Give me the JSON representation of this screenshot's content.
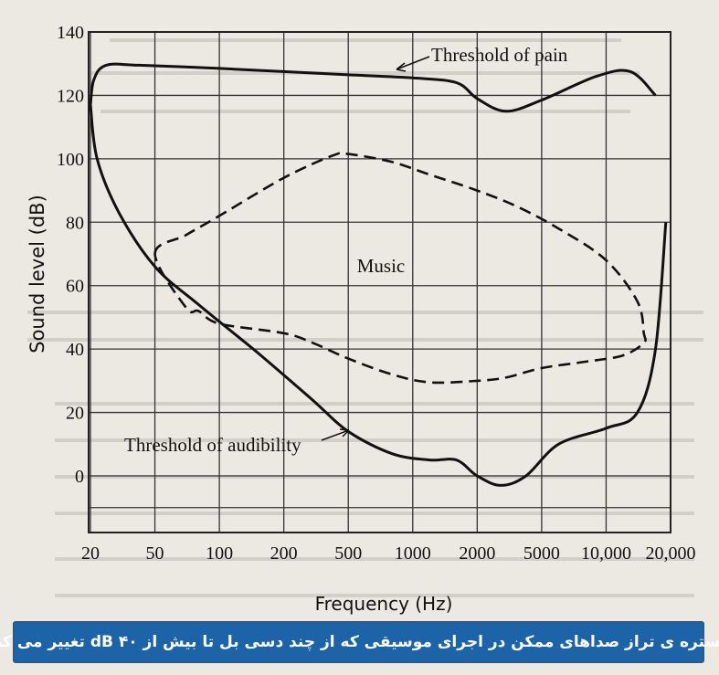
{
  "chart_data": {
    "type": "line",
    "xlabel": "Frequency (Hz)",
    "ylabel": "Sound level (dB)",
    "x_scale": "log",
    "xlim": [
      20,
      20000
    ],
    "ylim": [
      -10,
      140
    ],
    "x_ticks": [
      20,
      50,
      100,
      200,
      500,
      1000,
      2000,
      5000,
      10000,
      20000
    ],
    "x_tick_labels": [
      "20",
      "50",
      "100",
      "200",
      "500",
      "1000",
      "2000",
      "5000",
      "10,000",
      "20,000"
    ],
    "y_ticks": [
      0,
      20,
      40,
      60,
      80,
      100,
      120,
      140
    ],
    "y_tick_labels": [
      "0",
      "20",
      "40",
      "60",
      "80",
      "100",
      "120",
      "140"
    ],
    "grid": true,
    "series": [
      {
        "name": "Threshold of pain",
        "style": "solid",
        "x": [
          20,
          21,
          25,
          40,
          100,
          200,
          500,
          1000,
          1600,
          2000,
          3000,
          5000,
          9000,
          13000,
          17000
        ],
        "y": [
          117,
          125,
          129.5,
          129.5,
          128.5,
          127.5,
          126.5,
          125.5,
          124,
          119,
          115,
          118.5,
          126,
          127.5,
          120
        ]
      },
      {
        "name": "Threshold of audibility",
        "style": "solid",
        "x": [
          20,
          22,
          30,
          50,
          80,
          150,
          300,
          500,
          800,
          1200,
          1600,
          2000,
          2800,
          4000,
          6000,
          10000,
          14000,
          17000,
          19000
        ],
        "y": [
          117,
          100,
          83,
          66,
          54,
          39,
          24,
          14,
          7,
          5,
          5,
          0,
          -3,
          0,
          10,
          15,
          20,
          40,
          80
        ]
      },
      {
        "name": "Music",
        "style": "dashed",
        "x": [
          50,
          70,
          100,
          200,
          400,
          500,
          800,
          1200,
          2000,
          3500,
          6000,
          10000,
          14000,
          15000,
          15000,
          12000,
          8000,
          5000,
          3000,
          2000,
          1200,
          800,
          500,
          300,
          200,
          100,
          80,
          70
        ],
        "y": [
          70,
          76,
          82,
          94,
          101,
          101.5,
          99,
          95,
          90,
          85,
          78,
          68,
          55,
          45,
          42,
          38,
          36,
          34,
          31,
          30,
          29.5,
          32,
          37,
          42,
          45,
          48,
          52,
          53
        ]
      }
    ],
    "annotations": [
      "Threshold of pain",
      "Threshold of audibility",
      "Music"
    ]
  },
  "caption": "گستره ی تراز صداهای ممکن در اجرای موسیقی که از چند دسی بل تا بیش از ۴۰ dB تغییر می کند"
}
